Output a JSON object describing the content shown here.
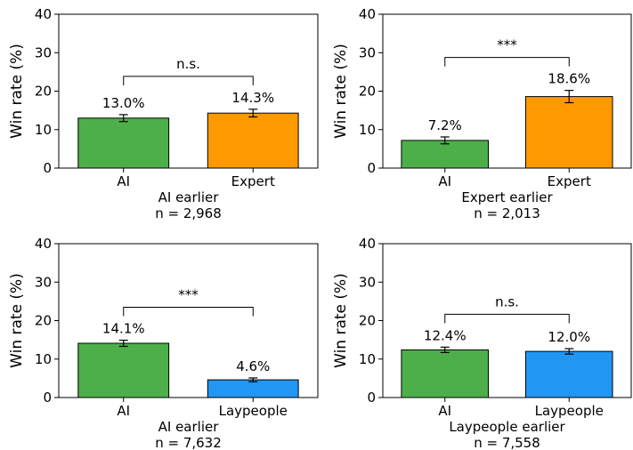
{
  "chart_data": [
    {
      "type": "bar",
      "categories": [
        "AI",
        "Expert"
      ],
      "values": [
        13.0,
        14.3
      ],
      "errors": [
        0.9,
        1.0
      ],
      "value_labels": [
        "13.0%",
        "14.3%"
      ],
      "bar_colors": [
        "#4daf4a",
        "#ff9900"
      ],
      "ylabel": "Win rate (%)",
      "ylim": [
        0,
        40
      ],
      "yticks": [
        "0",
        "10",
        "20",
        "30",
        "40"
      ],
      "xlabel": "AI earlier",
      "n_label": "n = 2,968",
      "significance": "n.s."
    },
    {
      "type": "bar",
      "categories": [
        "AI",
        "Expert"
      ],
      "values": [
        7.2,
        18.6
      ],
      "errors": [
        0.9,
        1.6
      ],
      "value_labels": [
        "7.2%",
        "18.6%"
      ],
      "bar_colors": [
        "#4daf4a",
        "#ff9900"
      ],
      "ylabel": "Win rate (%)",
      "ylim": [
        0,
        40
      ],
      "yticks": [
        "0",
        "10",
        "20",
        "30",
        "40"
      ],
      "xlabel": "Expert earlier",
      "n_label": "n = 2,013",
      "significance": "***"
    },
    {
      "type": "bar",
      "categories": [
        "AI",
        "Laypeople"
      ],
      "values": [
        14.1,
        4.6
      ],
      "errors": [
        0.8,
        0.5
      ],
      "value_labels": [
        "14.1%",
        "4.6%"
      ],
      "bar_colors": [
        "#4daf4a",
        "#2196f3"
      ],
      "ylabel": "Win rate (%)",
      "ylim": [
        0,
        40
      ],
      "yticks": [
        "0",
        "10",
        "20",
        "30",
        "40"
      ],
      "xlabel": "AI earlier",
      "n_label": "n = 7,632",
      "significance": "***"
    },
    {
      "type": "bar",
      "categories": [
        "AI",
        "Laypeople"
      ],
      "values": [
        12.4,
        12.0
      ],
      "errors": [
        0.7,
        0.7
      ],
      "value_labels": [
        "12.4%",
        "12.0%"
      ],
      "bar_colors": [
        "#4daf4a",
        "#2196f3"
      ],
      "ylabel": "Win rate (%)",
      "ylim": [
        0,
        40
      ],
      "yticks": [
        "0",
        "10",
        "20",
        "30",
        "40"
      ],
      "xlabel": "Laypeople earlier",
      "n_label": "n = 7,558",
      "significance": "n.s."
    }
  ]
}
